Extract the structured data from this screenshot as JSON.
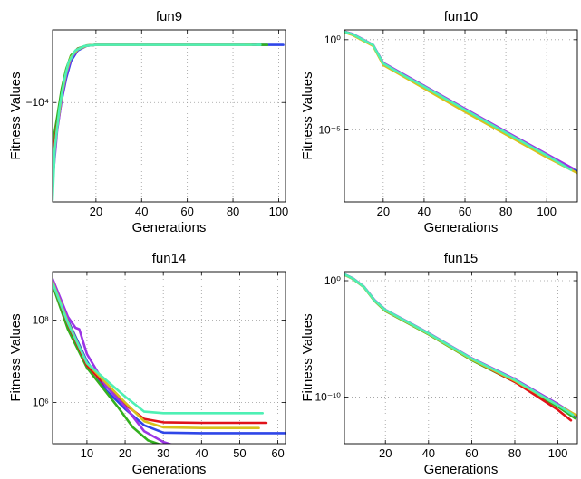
{
  "colors": [
    "#2f46e8",
    "#33b01f",
    "#e0131a",
    "#9b35e6",
    "#d8c21c",
    "#4ef0b4"
  ],
  "chart_data": [
    {
      "type": "line",
      "title": "fun9",
      "xlabel": "Generations",
      "ylabel": "Fitness Values",
      "xlim": [
        1,
        103
      ],
      "xticks": [
        20,
        40,
        60,
        80,
        100
      ],
      "yscale": "neglog",
      "ylim": [
        -1500,
        -40000
      ],
      "yticks": [
        -10000
      ],
      "yticklabels": [
        "−10⁴"
      ],
      "grid": true,
      "series": [
        {
          "color": "#2f46e8",
          "x": [
            1,
            3,
            5,
            7,
            9,
            12,
            16,
            20,
            40,
            60,
            80,
            100,
            102
          ],
          "y": [
            -3000,
            -6000,
            -10500,
            -16000,
            -22000,
            -27000,
            -29500,
            -30000,
            -30000,
            -30000,
            -30000,
            -30000,
            -30000
          ]
        },
        {
          "color": "#33b01f",
          "x": [
            1,
            3,
            5,
            7,
            9,
            12,
            16,
            20,
            40,
            60,
            80,
            95
          ],
          "y": [
            -4500,
            -7500,
            -13000,
            -19000,
            -24500,
            -28000,
            -29700,
            -30000,
            -30000,
            -30000,
            -30000,
            -30000
          ]
        },
        {
          "color": "#e0131a",
          "x": [
            1,
            3,
            5,
            7,
            9,
            12,
            16,
            20,
            40,
            60,
            80,
            90
          ],
          "y": [
            -3500,
            -6500,
            -11000,
            -17500,
            -23500,
            -27800,
            -29600,
            -30000,
            -30000,
            -30000,
            -30000,
            -30000
          ]
        },
        {
          "color": "#9b35e6",
          "x": [
            1,
            3,
            5,
            7,
            9,
            12,
            16,
            20,
            40,
            60,
            80,
            85
          ],
          "y": [
            -2200,
            -5800,
            -10800,
            -17000,
            -23000,
            -27500,
            -29500,
            -30000,
            -30000,
            -30000,
            -30000,
            -30000
          ]
        },
        {
          "color": "#d8c21c",
          "x": [
            1,
            3,
            5,
            7,
            9,
            12,
            16,
            20,
            40,
            60,
            80,
            88
          ],
          "y": [
            -2800,
            -6200,
            -11500,
            -18000,
            -23800,
            -27600,
            -29600,
            -30000,
            -30000,
            -30000,
            -30000,
            -30000
          ]
        },
        {
          "color": "#4ef0b4",
          "x": [
            1,
            2,
            4,
            6,
            8,
            11,
            15,
            20,
            40,
            60,
            80,
            92
          ],
          "y": [
            -1550,
            -4200,
            -9000,
            -15000,
            -21500,
            -27000,
            -29400,
            -30000,
            -30000,
            -30000,
            -30000,
            -30000
          ]
        }
      ]
    },
    {
      "type": "line",
      "title": "fun10",
      "xlabel": "Generations",
      "ylabel": "Fitness Values",
      "xlim": [
        1,
        115
      ],
      "xticks": [
        20,
        40,
        60,
        80,
        100
      ],
      "yscale": "log",
      "ylim": [
        1e-09,
        3.5
      ],
      "yticks": [
        1,
        1e-05
      ],
      "yticklabels": [
        "10⁰",
        "10⁻⁵"
      ],
      "grid": true,
      "series": [
        {
          "color": "#2f46e8",
          "x": [
            1,
            5,
            10,
            15,
            20,
            30,
            40,
            60,
            80,
            100,
            115
          ],
          "y": [
            2.8,
            2.0,
            1.0,
            0.5,
            0.05,
            0.011,
            0.0026,
            0.00014,
            7.5e-06,
            4e-07,
            5e-08
          ]
        },
        {
          "color": "#33b01f",
          "x": [
            1,
            5,
            10,
            15,
            20,
            30,
            40,
            60,
            80,
            100,
            110
          ],
          "y": [
            2.7,
            1.9,
            0.95,
            0.48,
            0.045,
            0.01,
            0.0024,
            0.00012,
            6.5e-06,
            3.5e-07,
            8e-08
          ]
        },
        {
          "color": "#e0131a",
          "x": [
            1,
            5,
            10,
            15,
            20,
            30,
            40,
            60,
            80,
            100,
            112
          ],
          "y": [
            2.9,
            2.0,
            1.0,
            0.5,
            0.05,
            0.011,
            0.0025,
            0.00013,
            7e-06,
            3.8e-07,
            7e-08
          ]
        },
        {
          "color": "#9b35e6",
          "x": [
            1,
            5,
            10,
            15,
            20,
            30,
            40,
            60,
            80,
            100,
            113
          ],
          "y": [
            2.8,
            2.1,
            1.05,
            0.52,
            0.052,
            0.012,
            0.0028,
            0.00015,
            8e-06,
            4.5e-07,
            7e-08
          ]
        },
        {
          "color": "#d8c21c",
          "x": [
            1,
            5,
            10,
            15,
            20,
            30,
            40,
            60,
            80,
            100,
            115
          ],
          "y": [
            2.6,
            1.8,
            0.9,
            0.45,
            0.04,
            0.009,
            0.002,
            0.0001,
            5.5e-06,
            3e-07,
            4e-08
          ]
        },
        {
          "color": "#4ef0b4",
          "x": [
            1,
            5,
            10,
            15,
            20,
            30,
            40,
            60,
            80,
            100,
            112
          ],
          "y": [
            2.8,
            2.0,
            1.0,
            0.5,
            0.048,
            0.0105,
            0.0025,
            0.00013,
            7e-06,
            3.8e-07,
            6e-08
          ]
        }
      ]
    },
    {
      "type": "line",
      "title": "fun14",
      "xlabel": "Generations",
      "ylabel": "Fitness Values",
      "xlim": [
        1,
        62
      ],
      "xticks": [
        10,
        20,
        30,
        40,
        50,
        60
      ],
      "yscale": "log",
      "ylim": [
        100000,
        1500000000
      ],
      "yticks": [
        1000000,
        100000000
      ],
      "yticklabels": [
        "10⁶",
        "10⁸"
      ],
      "grid": true,
      "series": [
        {
          "color": "#2f46e8",
          "x": [
            1,
            5,
            10,
            15,
            20,
            25,
            30,
            40,
            50,
            62
          ],
          "y": [
            900000000,
            100000000,
            10000000,
            2000000,
            700000,
            280000,
            185000,
            180000,
            180000,
            180000
          ]
        },
        {
          "color": "#33b01f",
          "x": [
            1,
            5,
            10,
            15,
            18,
            22,
            26,
            30,
            32
          ],
          "y": [
            700000000,
            60000000,
            7000000,
            1800000,
            800000,
            250000,
            120000,
            90000,
            80000
          ]
        },
        {
          "color": "#e0131a",
          "x": [
            1,
            5,
            10,
            15,
            20,
            25,
            30,
            40,
            50,
            57
          ],
          "y": [
            800000000,
            80000000,
            8000000,
            2500000,
            900000,
            400000,
            330000,
            320000,
            320000,
            320000
          ]
        },
        {
          "color": "#9b35e6",
          "x": [
            1,
            5,
            7,
            8,
            10,
            15,
            20,
            25,
            30,
            33
          ],
          "y": [
            1000000000,
            120000000,
            65000000,
            60000000,
            15000000,
            2500000,
            800000,
            200000,
            110000,
            90000
          ]
        },
        {
          "color": "#d8c21c",
          "x": [
            1,
            5,
            10,
            15,
            20,
            25,
            30,
            40,
            50,
            55
          ],
          "y": [
            850000000,
            90000000,
            9000000,
            3000000,
            1000000,
            350000,
            250000,
            240000,
            240000,
            240000
          ]
        },
        {
          "color": "#4ef0b4",
          "x": [
            1,
            5,
            10,
            15,
            20,
            25,
            30,
            40,
            50,
            56
          ],
          "y": [
            800000000,
            85000000,
            9000000,
            3500000,
            1400000,
            600000,
            550000,
            550000,
            550000,
            550000
          ]
        }
      ]
    },
    {
      "type": "line",
      "title": "fun15",
      "xlabel": "Generations",
      "ylabel": "Fitness Values",
      "xlim": [
        1,
        109
      ],
      "xticks": [
        20,
        40,
        60,
        80,
        100
      ],
      "yscale": "log",
      "ylim": [
        1e-14,
        6
      ],
      "yticks": [
        1,
        1e-10
      ],
      "yticklabels": [
        "10⁰",
        "10⁻¹⁰"
      ],
      "grid": true,
      "series": [
        {
          "color": "#2f46e8",
          "x": [
            1,
            5,
            10,
            15,
            20,
            30,
            40,
            60,
            80,
            100,
            109
          ],
          "y": [
            3.5,
            1.5,
            0.3,
            0.02,
            0.003,
            0.0003,
            3e-05,
            2e-07,
            3e-09,
            2e-11,
            2e-12
          ]
        },
        {
          "color": "#33b01f",
          "x": [
            1,
            5,
            10,
            15,
            20,
            30,
            40,
            60,
            80,
            100,
            108
          ],
          "y": [
            3.2,
            1.4,
            0.28,
            0.018,
            0.0025,
            0.00025,
            2.5e-05,
            1.5e-07,
            2e-09,
            1.5e-11,
            1.5e-12
          ]
        },
        {
          "color": "#e0131a",
          "x": [
            1,
            5,
            10,
            15,
            20,
            30,
            40,
            60,
            80,
            100,
            106
          ],
          "y": [
            3.4,
            1.5,
            0.3,
            0.02,
            0.0028,
            0.00028,
            2.8e-05,
            1.8e-07,
            2e-09,
            8e-12,
            1e-12
          ]
        },
        {
          "color": "#9b35e6",
          "x": [
            1,
            5,
            10,
            15,
            20,
            30,
            40,
            60,
            80,
            100,
            108
          ],
          "y": [
            3.6,
            1.6,
            0.32,
            0.022,
            0.0032,
            0.00032,
            3.2e-05,
            2.2e-07,
            3.5e-09,
            2.5e-11,
            3e-12
          ]
        },
        {
          "color": "#d8c21c",
          "x": [
            1,
            5,
            10,
            15,
            20,
            30,
            40,
            60,
            80,
            100,
            109
          ],
          "y": [
            3.3,
            1.45,
            0.29,
            0.019,
            0.0027,
            0.00027,
            2.7e-05,
            1.7e-07,
            2.5e-09,
            2e-11,
            2.5e-12
          ]
        },
        {
          "color": "#4ef0b4",
          "x": [
            1,
            5,
            10,
            15,
            20,
            30,
            40,
            60,
            80,
            100,
            107
          ],
          "y": [
            3.5,
            1.5,
            0.3,
            0.02,
            0.003,
            0.0003,
            3e-05,
            2e-07,
            3e-09,
            2e-11,
            3e-12
          ]
        }
      ]
    }
  ]
}
